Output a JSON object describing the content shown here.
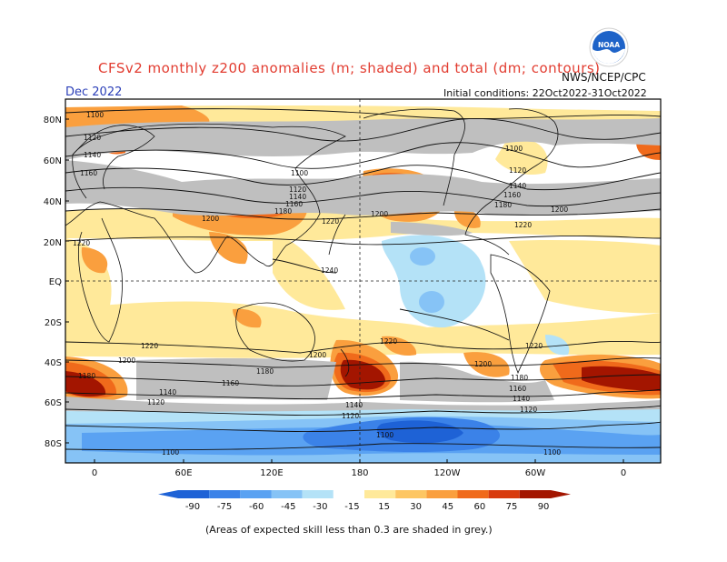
{
  "header": {
    "title": "CFSv2 monthly z200 anomalies (m; shaded) and total (dm; contours)",
    "month": "Dec 2022",
    "agency": "NWS/NCEP/CPC",
    "initial_conditions": "Initial conditions: 22Oct2022-31Oct2022",
    "logo_text": "NOAA"
  },
  "axes": {
    "lat_ticks": [
      "80N",
      "60N",
      "40N",
      "20N",
      "EQ",
      "20S",
      "40S",
      "60S",
      "80S"
    ],
    "lon_ticks": [
      "0",
      "60E",
      "120E",
      "180",
      "120W",
      "60W",
      "0"
    ]
  },
  "colorbar": {
    "levels": [
      "-90",
      "-75",
      "-60",
      "-45",
      "-30",
      "-15",
      "15",
      "30",
      "45",
      "60",
      "75",
      "90"
    ],
    "colors": [
      "#1e62d6",
      "#3b82e8",
      "#5aa2f2",
      "#86c3f6",
      "#b4e2f7",
      "#ffffff",
      "#ffe99a",
      "#fdc663",
      "#fa9f3e",
      "#f06a1b",
      "#d83a0d",
      "#a31500"
    ]
  },
  "colors": {
    "skill_grey": "#bfbfbf",
    "coast": "#111111",
    "contour": "#111111"
  },
  "contour_labels": {
    "nh": [
      "1100",
      "1120",
      "1140",
      "1160",
      "1180",
      "1200",
      "1220",
      "1240"
    ],
    "sh": [
      "1220",
      "1200",
      "1180",
      "1160",
      "1140",
      "1120",
      "1100"
    ]
  },
  "footnote": "(Areas of expected skill less than 0.3 are shaded in grey.)"
}
